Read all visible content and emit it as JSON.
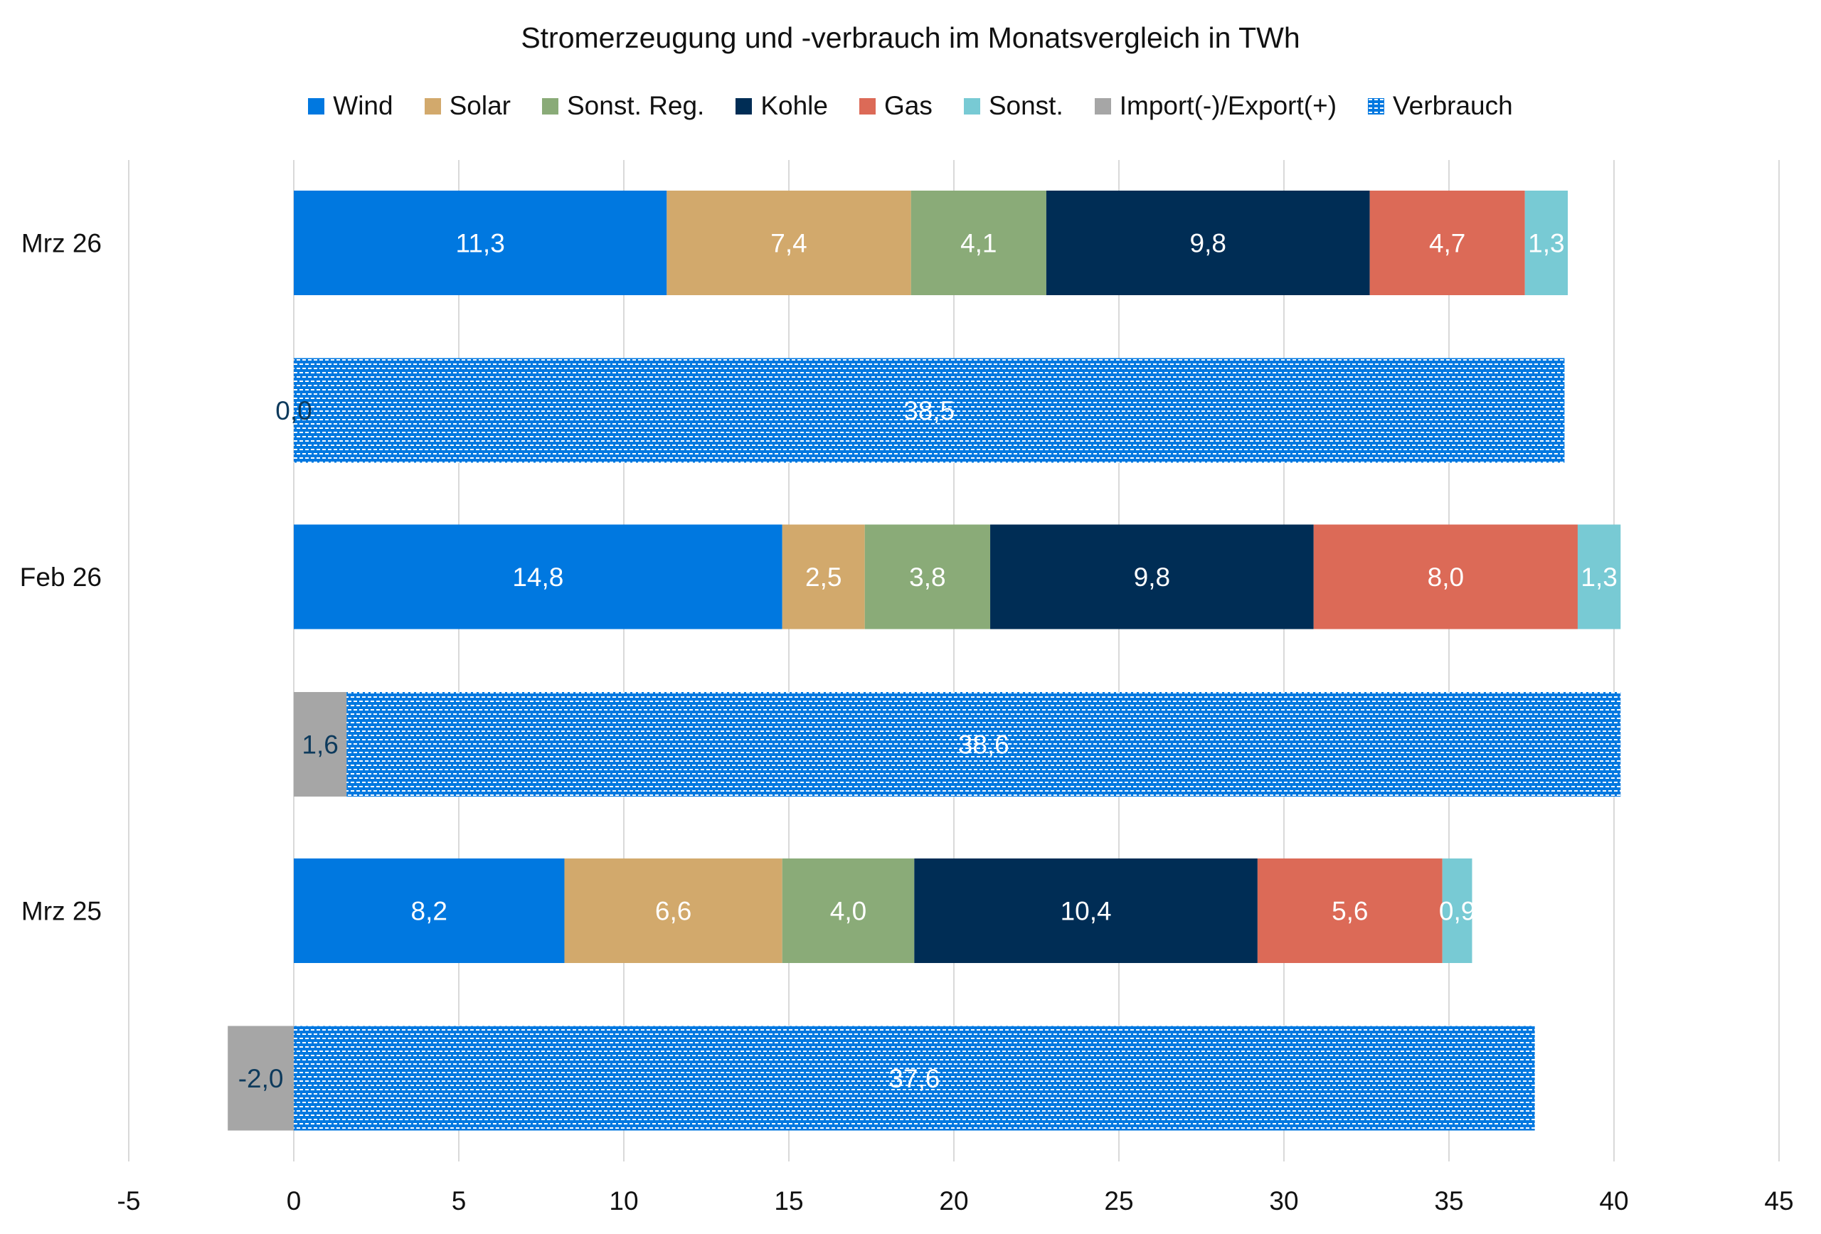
{
  "chart_data": {
    "type": "bar",
    "orientation": "horizontal",
    "stacked": true,
    "title": "Stromerzeugung und -verbrauch im Monatsvergleich in TWh",
    "xlabel": "",
    "ylabel": "",
    "xlim": [
      -5,
      45
    ],
    "x_ticks": [
      -5,
      0,
      5,
      10,
      15,
      20,
      25,
      30,
      35,
      40,
      45
    ],
    "x_tick_labels": [
      "-5",
      "0",
      "5",
      "10",
      "15",
      "20",
      "25",
      "30",
      "35",
      "40",
      "45"
    ],
    "grid": "vertical",
    "legend_position": "top",
    "categories": [
      "Mrz 26",
      "Feb 26",
      "Mrz 25"
    ],
    "series": [
      {
        "name": "Wind",
        "bar": "erzeugung",
        "color": "#0078E0",
        "label_color": "#FFFFFF",
        "values": [
          11.3,
          14.8,
          8.2
        ],
        "labels": [
          "11,3",
          "14,8",
          "8,2"
        ]
      },
      {
        "name": "Solar",
        "bar": "erzeugung",
        "color": "#D2A96C",
        "label_color": "#FFFFFF",
        "values": [
          7.4,
          2.5,
          6.6
        ],
        "labels": [
          "7,4",
          "2,5",
          "6,6"
        ]
      },
      {
        "name": "Sonst. Reg.",
        "bar": "erzeugung",
        "color": "#8AAB78",
        "label_color": "#FFFFFF",
        "values": [
          4.1,
          3.8,
          4.0
        ],
        "labels": [
          "4,1",
          "3,8",
          "4,0"
        ]
      },
      {
        "name": "Kohle",
        "bar": "erzeugung",
        "color": "#002D55",
        "label_color": "#FFFFFF",
        "values": [
          9.8,
          9.8,
          10.4
        ],
        "labels": [
          "9,8",
          "9,8",
          "10,4"
        ]
      },
      {
        "name": "Gas",
        "bar": "erzeugung",
        "color": "#DC6A57",
        "label_color": "#FFFFFF",
        "values": [
          4.7,
          8.0,
          5.6
        ],
        "labels": [
          "4,7",
          "8,0",
          "5,6"
        ]
      },
      {
        "name": "Sonst.",
        "bar": "erzeugung",
        "color": "#78CAD4",
        "label_color": "#FFFFFF",
        "values": [
          1.3,
          1.3,
          0.9
        ],
        "labels": [
          "1,3",
          "1,3",
          "0,9"
        ]
      },
      {
        "name": "Import(-)/Export(+)",
        "bar": "verbrauch",
        "color": "#A6A6A6",
        "label_color": "#0D3A5C",
        "values": [
          0.0,
          1.6,
          -2.0
        ],
        "labels": [
          "0,0",
          "1,6",
          "-2,0"
        ]
      },
      {
        "name": "Verbrauch",
        "bar": "verbrauch",
        "color": "#0078E0",
        "pattern": "dotted",
        "label_color": "#FFFFFF",
        "values": [
          38.5,
          38.6,
          37.6
        ],
        "labels": [
          "38,5",
          "38,6",
          "37,6"
        ]
      }
    ]
  }
}
